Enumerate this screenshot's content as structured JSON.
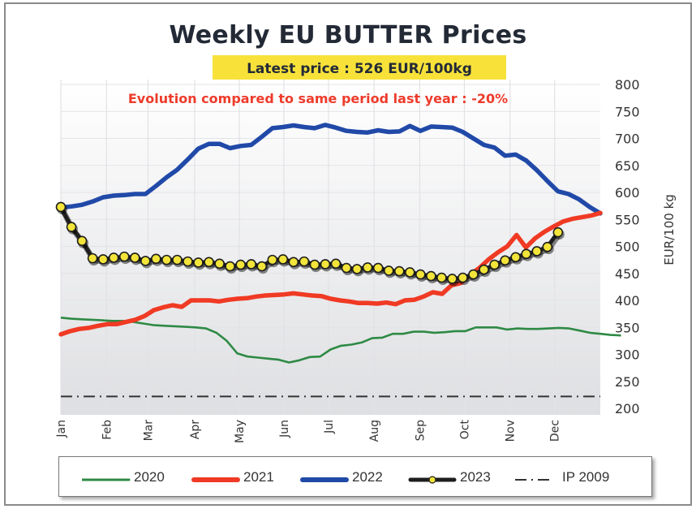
{
  "header": {
    "title": "Weekly EU BUTTER Prices",
    "latest_price": "Latest price : 526 EUR/100kg",
    "evolution": "Evolution compared to same period last year : -20%"
  },
  "colors": {
    "2020": "#2e8a44",
    "2021": "#f03a24",
    "2022": "#2049a8",
    "2023_line": "#1e1e1e",
    "2023_marker": "#f2e43a",
    "ip2009": "#333333",
    "latest_bg": "#f8e23a",
    "evolution_text": "#ee3b2b"
  },
  "chart_data": {
    "type": "line",
    "title": "Weekly EU BUTTER Prices",
    "xlabel": "",
    "ylabel": "EUR/100 kg",
    "ylim": [
      200,
      800
    ],
    "yticks": [
      800,
      750,
      700,
      650,
      600,
      550,
      500,
      450,
      400,
      350,
      300,
      250,
      200
    ],
    "x_unit": "week of year (1-53)",
    "xlim": [
      1,
      53
    ],
    "month_ticks": [
      {
        "label": "Jan",
        "week": 1
      },
      {
        "label": "Feb",
        "week": 5.4
      },
      {
        "label": "Mar",
        "week": 9.4
      },
      {
        "label": "Apr",
        "week": 13.9
      },
      {
        "label": "May",
        "week": 18.2
      },
      {
        "label": "Jun",
        "week": 22.5
      },
      {
        "label": "Jul",
        "week": 26.8
      },
      {
        "label": "Aug",
        "week": 31.2
      },
      {
        "label": "Sep",
        "week": 35.6
      },
      {
        "label": "Oct",
        "week": 39.9
      },
      {
        "label": "Nov",
        "week": 44.3
      },
      {
        "label": "Dec",
        "week": 48.6
      }
    ],
    "grid": true,
    "legend_position": "bottom",
    "series": [
      {
        "name": "2020",
        "style": "thin",
        "values": [
          368,
          366,
          365,
          364,
          363,
          362,
          362,
          360,
          357,
          354,
          353,
          352,
          351,
          350,
          348,
          340,
          325,
          302,
          296,
          294,
          292,
          290,
          285,
          289,
          295,
          296,
          309,
          316,
          318,
          322,
          330,
          331,
          338,
          338,
          342,
          342,
          340,
          341,
          343,
          343,
          350,
          350,
          350,
          346,
          348,
          347,
          347,
          348,
          349,
          348,
          344,
          340,
          338,
          336,
          335
        ]
      },
      {
        "name": "2021",
        "style": "thick",
        "values": [
          337,
          343,
          347,
          349,
          353,
          356,
          356,
          360,
          364,
          371,
          382,
          387,
          391,
          388,
          400,
          400,
          400,
          398,
          401,
          403,
          404,
          407,
          409,
          410,
          411,
          413,
          411,
          409,
          408,
          403,
          400,
          398,
          395,
          395,
          394,
          396,
          393,
          400,
          401,
          407,
          415,
          412,
          428,
          432,
          447,
          460,
          476,
          489,
          500,
          521,
          498,
          515,
          527,
          537,
          546,
          551,
          554,
          557,
          562
        ]
      },
      {
        "name": "2022",
        "style": "thick",
        "values": [
          572,
          574,
          577,
          583,
          591,
          594,
          595,
          597,
          597,
          612,
          628,
          642,
          661,
          681,
          690,
          690,
          682,
          686,
          688,
          703,
          719,
          721,
          724,
          721,
          719,
          725,
          720,
          714,
          712,
          711,
          715,
          712,
          713,
          723,
          714,
          722,
          721,
          720,
          712,
          700,
          688,
          683,
          668,
          670,
          659,
          641,
          621,
          602,
          597,
          587,
          573,
          561
        ]
      },
      {
        "name": "2023",
        "style": "thick-with-markers",
        "values": [
          573,
          536,
          510,
          478,
          476,
          479,
          481,
          479,
          473,
          477,
          475,
          475,
          472,
          470,
          471,
          468,
          463,
          466,
          467,
          463,
          475,
          476,
          471,
          472,
          466,
          467,
          468,
          460,
          458,
          461,
          460,
          455,
          454,
          452,
          448,
          445,
          442,
          440,
          442,
          448,
          457,
          466,
          474,
          480,
          486,
          491,
          499,
          526
        ]
      },
      {
        "name": "IP 2009",
        "style": "dash-dot",
        "values": [
          222,
          222
        ]
      }
    ]
  },
  "legend": {
    "items": [
      {
        "label": "2020"
      },
      {
        "label": "2021"
      },
      {
        "label": "2022"
      },
      {
        "label": "2023"
      },
      {
        "label": "IP 2009"
      }
    ]
  }
}
